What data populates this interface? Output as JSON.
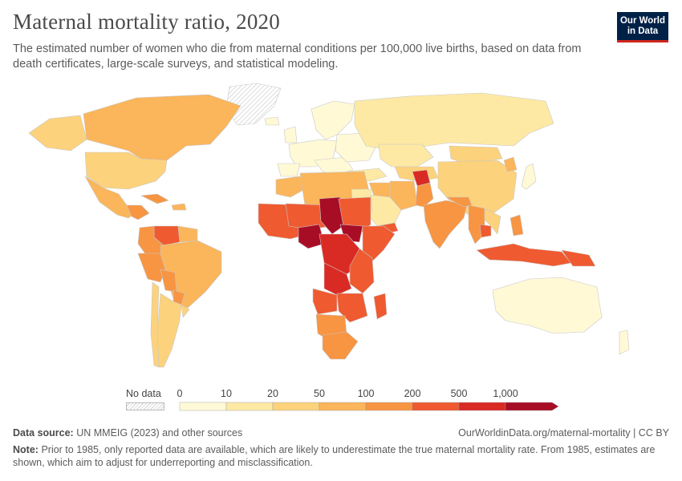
{
  "header": {
    "title": "Maternal mortality ratio, 2020",
    "subtitle": "The estimated number of women who die from maternal conditions per 100,000 live births, based on data from death certificates, large-scale surveys, and statistical modeling.",
    "logo_line1": "Our World",
    "logo_line2": "in Data"
  },
  "legend": {
    "no_data_label": "No data",
    "bins": [
      {
        "label": "0",
        "color": "#fff9d6"
      },
      {
        "label": "10",
        "color": "#fde9a4"
      },
      {
        "label": "20",
        "color": "#fcd27c"
      },
      {
        "label": "50",
        "color": "#fbb55a"
      },
      {
        "label": "100",
        "color": "#f79543"
      },
      {
        "label": "200",
        "color": "#ef5a30"
      },
      {
        "label": "500",
        "color": "#da2a24"
      },
      {
        "label": "1,000",
        "color": "#a80d26"
      }
    ]
  },
  "map": {
    "ocean_color": "#ffffff",
    "border_color": "#c8c8c8",
    "no_data_color": "#e2e2e2"
  },
  "footer": {
    "source_label": "Data source:",
    "source_text": "UN MMEIG (2023) and other sources",
    "url": "OurWorldinData.org/maternal-mortality | CC BY",
    "note_label": "Note:",
    "note_text": "Prior to 1985, only reported data are available, which are likely to underestimate the true maternal mortality rate. From 1985, estimates are shown, which aim to adjust for underreporting and misclassification."
  }
}
